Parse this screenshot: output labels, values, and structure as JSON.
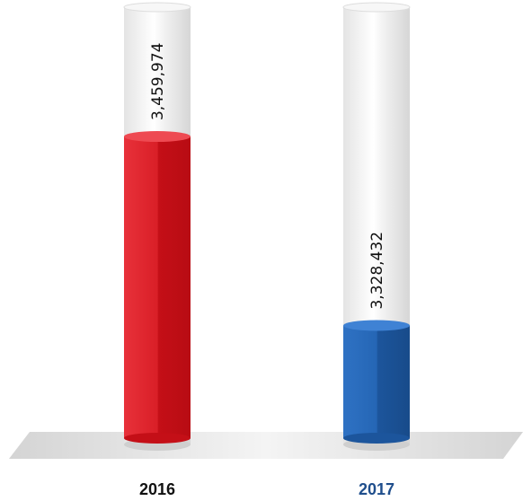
{
  "chart_data": {
    "type": "bar",
    "title": "",
    "xlabel": "",
    "ylabel": "",
    "categories": [
      "2016",
      "2017"
    ],
    "values": [
      3459974,
      3328432
    ],
    "value_labels": [
      "3,459,974",
      "3,328,432"
    ],
    "ylim": [
      3250000,
      3550000
    ],
    "grid": false,
    "legend": "none",
    "colors": {
      "bar_2016": "#e01b24",
      "bar_2017": "#1f5fad",
      "label_2016": "#111111",
      "label_2017": "#1f4e8c",
      "tube": "#e6e6e6",
      "floor": "#d9d9d9"
    }
  }
}
